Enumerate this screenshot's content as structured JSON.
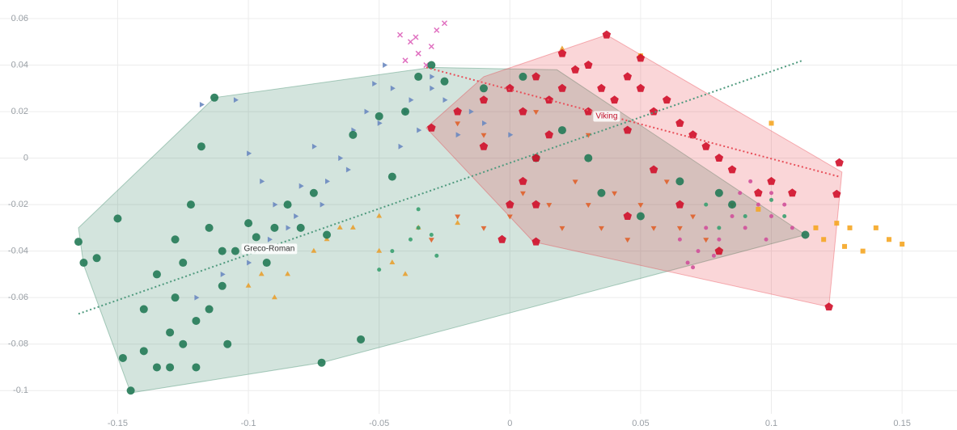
{
  "chart_data": {
    "type": "scatter",
    "xlim": [
      -0.195,
      0.171
    ],
    "ylim": [
      -0.11,
      0.068
    ],
    "xticks": [
      -0.15,
      -0.1,
      -0.05,
      0,
      0.05,
      0.1,
      0.15
    ],
    "yticks": [
      0.06,
      0.04,
      0.02,
      0,
      -0.02,
      -0.04,
      -0.06,
      -0.08,
      -0.1
    ],
    "grid": true,
    "hulls": [
      {
        "color": "#237a57",
        "x": [
          -0.165,
          -0.113,
          -0.03,
          0.018,
          0.113,
          -0.072,
          -0.145,
          -0.163
        ],
        "y": [
          -0.03,
          0.026,
          0.039,
          0.038,
          -0.033,
          -0.088,
          -0.101,
          -0.046
        ]
      },
      {
        "color": "#e8303c",
        "x": [
          0.037,
          0.127,
          0.122,
          0.009,
          -0.032,
          -0.01
        ],
        "y": [
          0.053,
          -0.006,
          -0.064,
          -0.036,
          0.013,
          0.035
        ]
      }
    ],
    "lines": [
      {
        "color": "#4f9a7e",
        "x": [
          -0.165,
          0.112
        ],
        "y": [
          -0.067,
          0.042
        ]
      },
      {
        "color": "#e8505a",
        "x": [
          -0.032,
          0.126
        ],
        "y": [
          0.039,
          -0.008
        ]
      }
    ],
    "series": [
      {
        "marker": "triangle-right",
        "color": "#6a88c0",
        "x": [
          -0.118,
          -0.105,
          -0.1,
          -0.095,
          -0.09,
          -0.085,
          -0.08,
          -0.075,
          -0.07,
          -0.065,
          -0.06,
          -0.055,
          -0.05,
          -0.045,
          -0.04,
          -0.038,
          -0.035,
          -0.03,
          -0.025,
          -0.02,
          -0.015,
          -0.01,
          0.0,
          -0.052,
          -0.042,
          -0.062,
          -0.072,
          -0.082,
          -0.092,
          -0.1,
          -0.11,
          -0.12,
          -0.048,
          -0.03
        ],
        "y": [
          0.023,
          0.025,
          0.002,
          -0.01,
          -0.02,
          -0.03,
          -0.012,
          0.005,
          -0.01,
          0.0,
          0.012,
          0.02,
          0.015,
          0.03,
          0.02,
          0.025,
          0.012,
          0.03,
          0.025,
          0.01,
          0.02,
          0.015,
          0.01,
          0.032,
          0.005,
          -0.005,
          -0.02,
          -0.025,
          -0.035,
          -0.045,
          -0.05,
          -0.06,
          0.04,
          0.035
        ]
      },
      {
        "marker": "triangle-down",
        "color": "#e0602a",
        "x": [
          0.0,
          0.005,
          0.015,
          0.02,
          0.025,
          0.03,
          0.035,
          0.04,
          0.045,
          0.05,
          0.055,
          0.06,
          0.065,
          0.07,
          0.075,
          -0.01,
          -0.02,
          0.01,
          0.03,
          -0.02,
          -0.01,
          -0.03,
          0.085
        ],
        "y": [
          -0.025,
          -0.015,
          -0.02,
          -0.03,
          -0.01,
          -0.02,
          -0.03,
          -0.015,
          -0.035,
          -0.02,
          -0.03,
          -0.01,
          -0.03,
          -0.025,
          -0.035,
          0.01,
          0.015,
          0.02,
          0.01,
          -0.025,
          -0.03,
          -0.035,
          -0.02
        ]
      },
      {
        "marker": "triangle-up",
        "color": "#e8a030",
        "x": [
          -0.1,
          -0.095,
          -0.09,
          -0.085,
          -0.075,
          -0.07,
          -0.065,
          -0.06,
          -0.05,
          -0.045,
          -0.035,
          -0.04,
          -0.05,
          -0.02,
          0.02
        ],
        "y": [
          -0.055,
          -0.05,
          -0.06,
          -0.05,
          -0.04,
          -0.035,
          -0.03,
          -0.03,
          -0.04,
          -0.045,
          -0.03,
          -0.05,
          -0.025,
          -0.028,
          0.047
        ]
      },
      {
        "marker": "dot",
        "color": "#3aa070",
        "x": [
          -0.045,
          -0.038,
          -0.035,
          -0.03,
          -0.028,
          -0.05,
          -0.035,
          0.075,
          0.08,
          0.09,
          0.1,
          0.105
        ],
        "y": [
          -0.04,
          -0.035,
          -0.03,
          -0.033,
          -0.042,
          -0.048,
          -0.022,
          -0.02,
          -0.03,
          -0.025,
          -0.018,
          -0.025
        ]
      },
      {
        "marker": "dot",
        "color": "#d0509a",
        "x": [
          0.065,
          0.068,
          0.072,
          0.075,
          0.08,
          0.085,
          0.09,
          0.095,
          0.1,
          0.105,
          0.098,
          0.092,
          0.088,
          0.07,
          0.078,
          0.1,
          0.108
        ],
        "y": [
          -0.035,
          -0.045,
          -0.04,
          -0.03,
          -0.035,
          -0.025,
          -0.03,
          -0.02,
          -0.025,
          -0.02,
          -0.035,
          -0.01,
          -0.015,
          -0.047,
          -0.042,
          -0.015,
          -0.03
        ]
      },
      {
        "marker": "x",
        "color": "#e070c0",
        "x": [
          -0.042,
          -0.038,
          -0.035,
          -0.03,
          -0.028,
          -0.025,
          -0.04,
          -0.032,
          -0.036
        ],
        "y": [
          0.053,
          0.05,
          0.045,
          0.048,
          0.055,
          0.058,
          0.042,
          0.04,
          0.052
        ]
      },
      {
        "marker": "square",
        "color": "#f5a623",
        "x": [
          0.12,
          0.125,
          0.13,
          0.135,
          0.14,
          0.15,
          0.145,
          0.128,
          0.1,
          0.05,
          0.095,
          0.117
        ],
        "y": [
          -0.035,
          -0.028,
          -0.03,
          -0.04,
          -0.03,
          -0.037,
          -0.035,
          -0.038,
          0.015,
          0.044,
          -0.022,
          -0.03
        ]
      },
      {
        "marker": "circle",
        "color": "#237a57",
        "x": [
          -0.165,
          -0.163,
          -0.158,
          -0.15,
          -0.148,
          -0.145,
          -0.14,
          -0.135,
          -0.13,
          -0.128,
          -0.125,
          -0.122,
          -0.12,
          -0.118,
          -0.115,
          -0.113,
          -0.11,
          -0.108,
          -0.105,
          -0.1,
          -0.097,
          -0.093,
          -0.09,
          -0.085,
          -0.08,
          -0.075,
          -0.072,
          -0.07,
          -0.06,
          -0.057,
          -0.05,
          -0.045,
          -0.04,
          -0.035,
          -0.03,
          -0.025,
          -0.01,
          0.005,
          0.01,
          0.02,
          0.03,
          0.035,
          0.05,
          0.065,
          0.08,
          0.085,
          0.113,
          -0.14,
          -0.135,
          -0.128,
          -0.125,
          -0.12,
          -0.115,
          -0.11,
          -0.13
        ],
        "y": [
          -0.036,
          -0.045,
          -0.043,
          -0.026,
          -0.086,
          -0.1,
          -0.083,
          -0.09,
          -0.075,
          -0.06,
          -0.045,
          -0.02,
          -0.07,
          0.005,
          -0.03,
          0.026,
          -0.055,
          -0.08,
          -0.04,
          -0.028,
          -0.034,
          -0.045,
          -0.03,
          -0.02,
          -0.03,
          -0.015,
          -0.088,
          -0.033,
          0.01,
          -0.078,
          0.018,
          -0.008,
          0.02,
          0.035,
          0.04,
          0.033,
          0.03,
          0.035,
          0.0,
          0.012,
          0.0,
          -0.015,
          -0.025,
          -0.01,
          -0.015,
          -0.02,
          -0.033,
          -0.065,
          -0.05,
          -0.035,
          -0.08,
          -0.09,
          -0.065,
          -0.04,
          -0.09
        ]
      },
      {
        "marker": "pentagon",
        "color": "#d0102a",
        "x": [
          -0.03,
          -0.02,
          -0.01,
          0.0,
          0.005,
          0.01,
          0.015,
          0.02,
          0.025,
          0.03,
          0.035,
          0.037,
          0.04,
          0.045,
          0.05,
          0.055,
          0.06,
          0.065,
          0.07,
          0.075,
          0.08,
          0.085,
          0.095,
          0.1,
          0.108,
          0.125,
          0.126,
          0.122,
          0.01,
          0.005,
          -0.01,
          0.0,
          0.01,
          0.045,
          0.055,
          0.065,
          0.08,
          0.03,
          0.02,
          0.05,
          0.01,
          -0.003,
          0.045,
          0.015
        ],
        "y": [
          0.013,
          0.02,
          0.025,
          0.03,
          0.02,
          0.035,
          0.025,
          0.03,
          0.038,
          0.02,
          0.03,
          0.053,
          0.025,
          0.035,
          0.03,
          0.02,
          0.025,
          0.015,
          0.01,
          0.005,
          0.0,
          -0.005,
          -0.015,
          -0.01,
          -0.015,
          -0.0155,
          -0.002,
          -0.064,
          0.0,
          -0.01,
          0.005,
          -0.02,
          -0.02,
          0.012,
          -0.005,
          -0.02,
          -0.04,
          0.04,
          0.045,
          0.043,
          -0.036,
          -0.035,
          -0.025,
          0.01
        ]
      }
    ],
    "annotations": [
      {
        "text": "Greco-Roman",
        "x": -0.092,
        "y": -0.039
      },
      {
        "text": "Viking",
        "x": 0.037,
        "y": 0.018
      }
    ]
  }
}
